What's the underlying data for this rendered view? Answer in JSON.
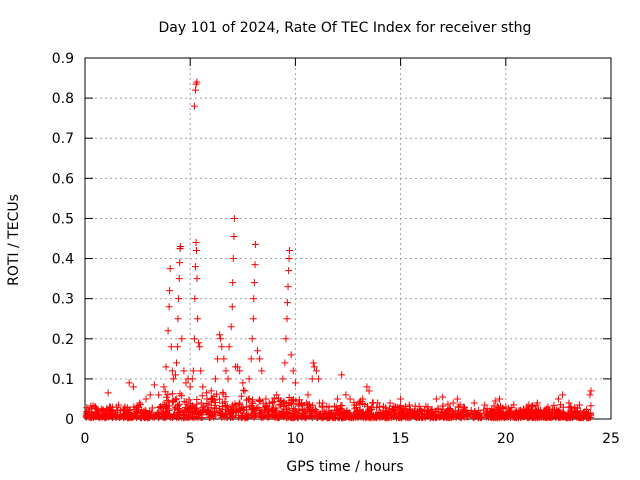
{
  "chart_data": {
    "type": "scatter",
    "title": "Day 101 of 2024, Rate Of TEC Index for receiver sthg",
    "xlabel": "GPS time / hours",
    "ylabel": "ROTI / TECUs",
    "xlim": [
      0,
      25
    ],
    "ylim": [
      0,
      0.9
    ],
    "x_ticks": [
      "0",
      "5",
      "10",
      "15",
      "20",
      "25"
    ],
    "y_ticks": [
      "0",
      "0.1",
      "0.2",
      "0.3",
      "0.4",
      "0.5",
      "0.6",
      "0.7",
      "0.8",
      "0.9"
    ],
    "grid": true,
    "marker": "+",
    "color": "#ff0000",
    "series": [
      {
        "name": "ROTI",
        "points": [
          [
            0.2,
            0.02
          ],
          [
            0.5,
            0.03
          ],
          [
            0.8,
            0.025
          ],
          [
            1.1,
            0.065
          ],
          [
            1.3,
            0.03
          ],
          [
            1.6,
            0.035
          ],
          [
            1.9,
            0.03
          ],
          [
            2.1,
            0.09
          ],
          [
            2.3,
            0.08
          ],
          [
            2.6,
            0.04
          ],
          [
            2.9,
            0.05
          ],
          [
            3.1,
            0.06
          ],
          [
            3.3,
            0.085
          ],
          [
            3.5,
            0.06
          ],
          [
            3.75,
            0.08
          ],
          [
            3.85,
            0.13
          ],
          [
            3.95,
            0.22
          ],
          [
            4.0,
            0.28
          ],
          [
            4.02,
            0.32
          ],
          [
            4.05,
            0.375
          ],
          [
            4.1,
            0.18
          ],
          [
            4.15,
            0.12
          ],
          [
            4.2,
            0.1
          ],
          [
            4.3,
            0.11
          ],
          [
            4.35,
            0.14
          ],
          [
            4.4,
            0.18
          ],
          [
            4.42,
            0.25
          ],
          [
            4.45,
            0.3
          ],
          [
            4.48,
            0.35
          ],
          [
            4.5,
            0.39
          ],
          [
            4.52,
            0.425
          ],
          [
            4.55,
            0.43
          ],
          [
            4.6,
            0.2
          ],
          [
            4.7,
            0.12
          ],
          [
            4.8,
            0.09
          ],
          [
            4.9,
            0.1
          ],
          [
            5.0,
            0.08
          ],
          [
            5.1,
            0.1
          ],
          [
            5.15,
            0.12
          ],
          [
            5.2,
            0.2
          ],
          [
            5.22,
            0.3
          ],
          [
            5.25,
            0.38
          ],
          [
            5.28,
            0.44
          ],
          [
            5.3,
            0.42
          ],
          [
            5.32,
            0.35
          ],
          [
            5.35,
            0.25
          ],
          [
            5.4,
            0.19
          ],
          [
            5.45,
            0.18
          ],
          [
            5.2,
            0.78
          ],
          [
            5.25,
            0.82
          ],
          [
            5.28,
            0.835
          ],
          [
            5.32,
            0.84
          ],
          [
            5.5,
            0.12
          ],
          [
            5.6,
            0.08
          ],
          [
            5.8,
            0.05
          ],
          [
            6.0,
            0.07
          ],
          [
            6.2,
            0.1
          ],
          [
            6.3,
            0.15
          ],
          [
            6.4,
            0.21
          ],
          [
            6.45,
            0.2
          ],
          [
            6.5,
            0.18
          ],
          [
            6.6,
            0.15
          ],
          [
            6.7,
            0.12
          ],
          [
            6.8,
            0.1
          ],
          [
            6.85,
            0.18
          ],
          [
            6.95,
            0.23
          ],
          [
            7.0,
            0.28
          ],
          [
            7.02,
            0.34
          ],
          [
            7.05,
            0.4
          ],
          [
            7.08,
            0.455
          ],
          [
            7.1,
            0.5
          ],
          [
            7.15,
            0.13
          ],
          [
            7.25,
            0.13
          ],
          [
            7.35,
            0.12
          ],
          [
            7.5,
            0.09
          ],
          [
            7.6,
            0.07
          ],
          [
            7.8,
            0.1
          ],
          [
            7.9,
            0.15
          ],
          [
            7.95,
            0.2
          ],
          [
            8.0,
            0.25
          ],
          [
            8.02,
            0.3
          ],
          [
            8.05,
            0.34
          ],
          [
            8.08,
            0.385
          ],
          [
            8.1,
            0.435
          ],
          [
            8.2,
            0.17
          ],
          [
            8.3,
            0.15
          ],
          [
            8.4,
            0.12
          ],
          [
            8.6,
            0.05
          ],
          [
            8.9,
            0.04
          ],
          [
            9.2,
            0.05
          ],
          [
            9.4,
            0.1
          ],
          [
            9.5,
            0.14
          ],
          [
            9.55,
            0.2
          ],
          [
            9.6,
            0.25
          ],
          [
            9.62,
            0.29
          ],
          [
            9.65,
            0.33
          ],
          [
            9.68,
            0.37
          ],
          [
            9.7,
            0.4
          ],
          [
            9.72,
            0.42
          ],
          [
            9.8,
            0.16
          ],
          [
            9.9,
            0.12
          ],
          [
            10.0,
            0.09
          ],
          [
            10.3,
            0.04
          ],
          [
            10.6,
            0.06
          ],
          [
            10.8,
            0.1
          ],
          [
            10.85,
            0.14
          ],
          [
            10.9,
            0.13
          ],
          [
            11.0,
            0.12
          ],
          [
            11.1,
            0.1
          ],
          [
            11.3,
            0.04
          ],
          [
            11.6,
            0.03
          ],
          [
            12.0,
            0.05
          ],
          [
            12.2,
            0.11
          ],
          [
            12.4,
            0.06
          ],
          [
            12.6,
            0.05
          ],
          [
            12.9,
            0.035
          ],
          [
            13.2,
            0.05
          ],
          [
            13.4,
            0.08
          ],
          [
            13.5,
            0.07
          ],
          [
            13.7,
            0.04
          ],
          [
            14.0,
            0.03
          ],
          [
            14.5,
            0.04
          ],
          [
            15.0,
            0.05
          ],
          [
            15.3,
            0.02
          ],
          [
            15.8,
            0.02
          ],
          [
            16.3,
            0.03
          ],
          [
            16.7,
            0.05
          ],
          [
            17.0,
            0.055
          ],
          [
            17.5,
            0.04
          ],
          [
            17.7,
            0.05
          ],
          [
            18.0,
            0.03
          ],
          [
            18.5,
            0.04
          ],
          [
            19.0,
            0.035
          ],
          [
            19.5,
            0.045
          ],
          [
            19.7,
            0.05
          ],
          [
            20.0,
            0.03
          ],
          [
            20.5,
            0.02
          ],
          [
            21.0,
            0.03
          ],
          [
            21.5,
            0.04
          ],
          [
            22.0,
            0.03
          ],
          [
            22.5,
            0.05
          ],
          [
            22.7,
            0.06
          ],
          [
            23.0,
            0.04
          ],
          [
            23.5,
            0.035
          ],
          [
            24.0,
            0.06
          ],
          [
            24.05,
            0.07
          ]
        ]
      }
    ]
  }
}
